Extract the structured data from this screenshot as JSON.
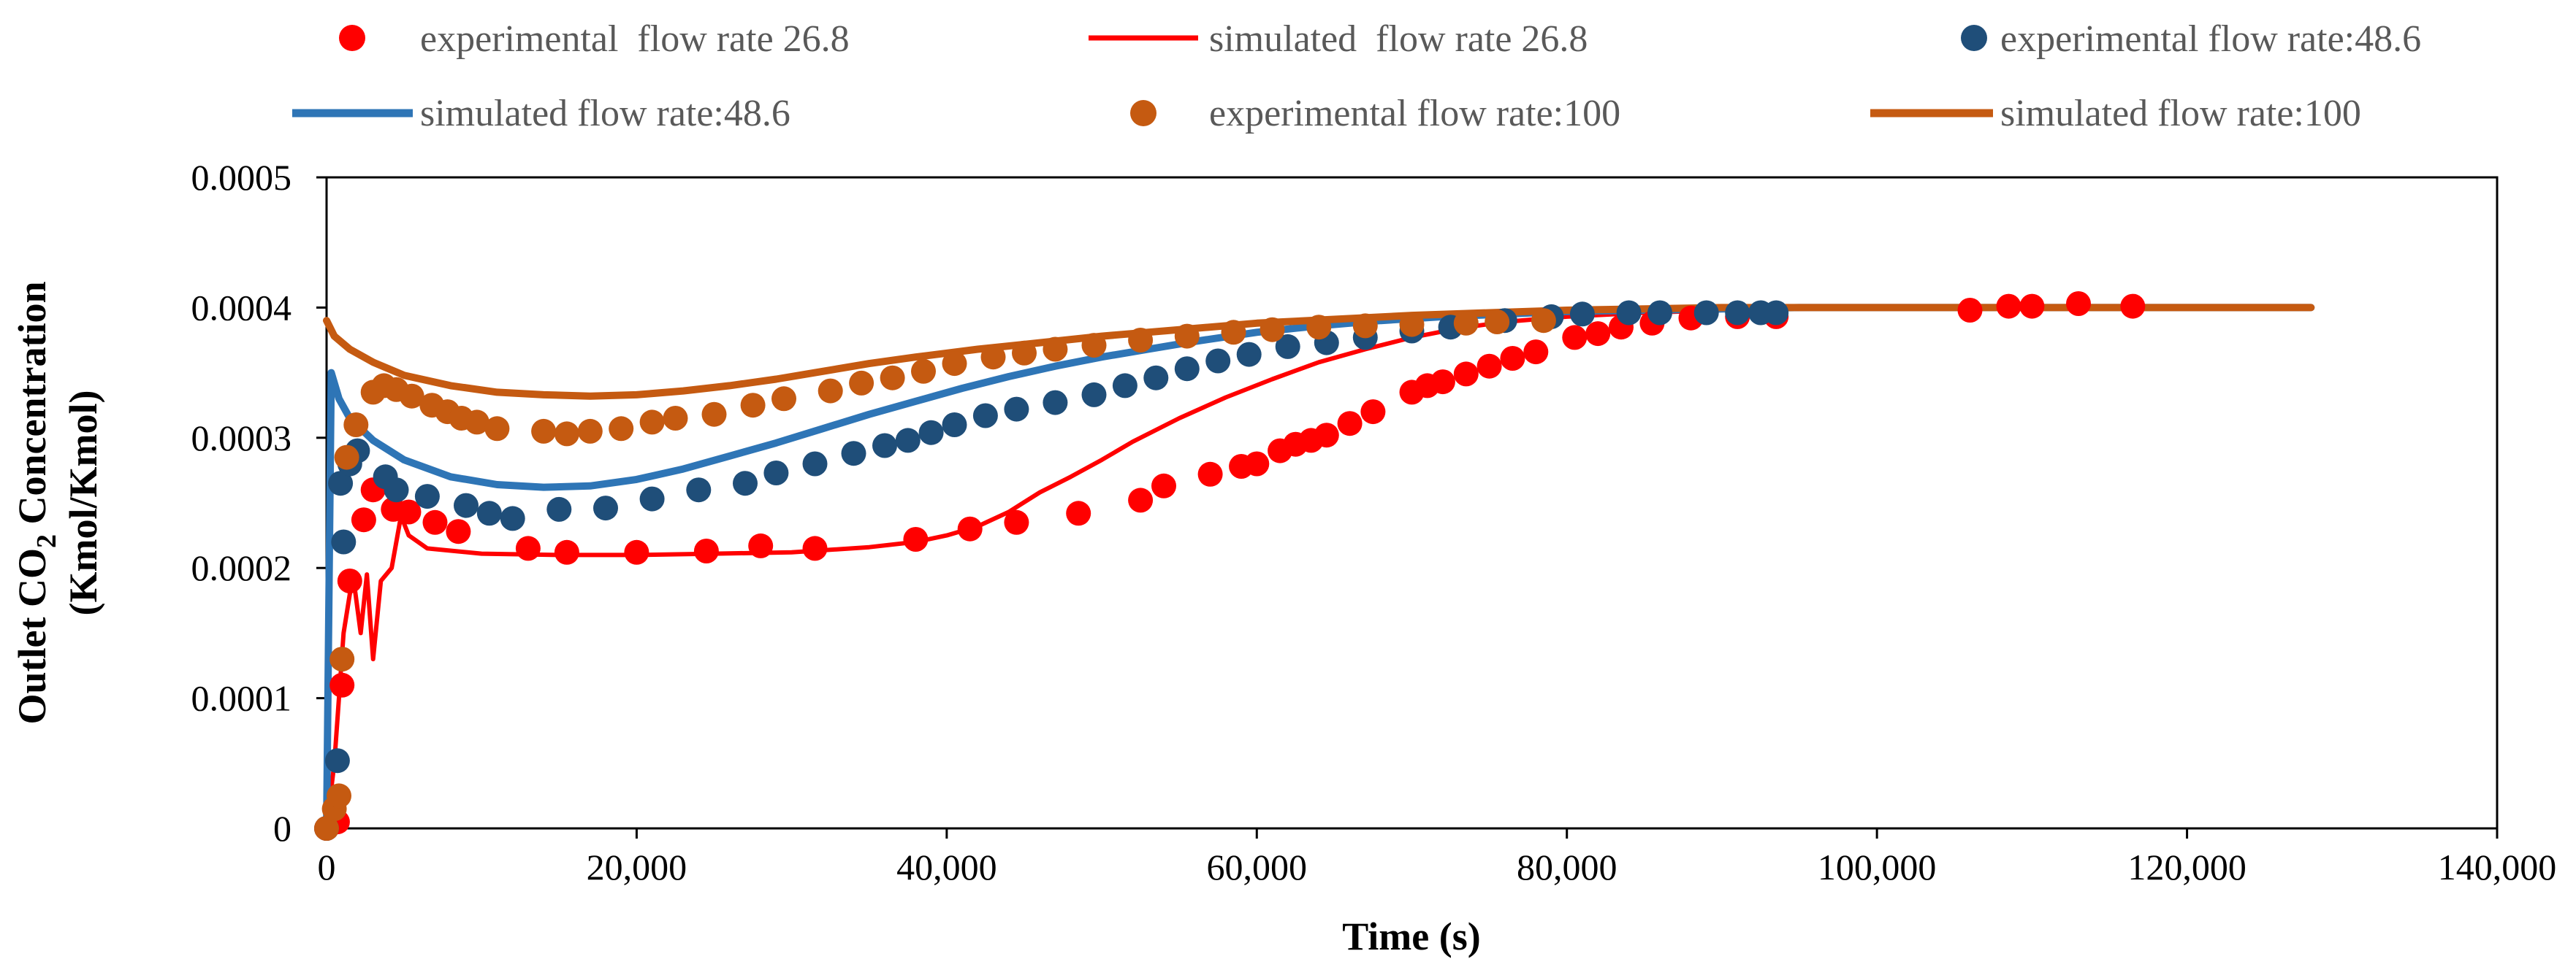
{
  "chart_data": {
    "type": "scatter",
    "title": "",
    "xlabel": "Time (s)",
    "ylabel_line1_prefix": "Outlet CO",
    "ylabel_line1_subscript": "2",
    "ylabel_line1_suffix": " Concentration",
    "ylabel_line2": "(Kmol/Kmol)",
    "xlim": [
      0,
      140000
    ],
    "ylim": [
      0,
      0.0005
    ],
    "x_ticks": [
      0,
      20000,
      40000,
      60000,
      80000,
      100000,
      120000,
      140000
    ],
    "x_tick_labels": [
      "0",
      "20,000",
      "40,000",
      "60,000",
      "80,000",
      "100,000",
      "120,000",
      "140,000"
    ],
    "y_ticks": [
      0,
      0.0001,
      0.0002,
      0.0003,
      0.0004,
      0.0005
    ],
    "y_tick_labels": [
      "0",
      "0.0001",
      "0.0002",
      "0.0003",
      "0.0004",
      "0.0005"
    ],
    "grid": false,
    "legend_position": "top",
    "series": [
      {
        "name": "experimental  flow rate 26.8",
        "kind": "marker",
        "color": "#ff0000",
        "points": [
          [
            0,
            0
          ],
          [
            700,
            5e-06
          ],
          [
            1000,
            0.00011
          ],
          [
            1500,
            0.00019
          ],
          [
            2400,
            0.000237
          ],
          [
            3000,
            0.00026
          ],
          [
            4300,
            0.000245
          ],
          [
            5300,
            0.000243
          ],
          [
            7000,
            0.000235
          ],
          [
            8500,
            0.000228
          ],
          [
            13000,
            0.000215
          ],
          [
            15500,
            0.000212
          ],
          [
            20000,
            0.000212
          ],
          [
            24500,
            0.000213
          ],
          [
            28000,
            0.000217
          ],
          [
            31500,
            0.000215
          ],
          [
            38000,
            0.000222
          ],
          [
            41500,
            0.00023
          ],
          [
            44500,
            0.000235
          ],
          [
            48500,
            0.000242
          ],
          [
            52500,
            0.000252
          ],
          [
            54000,
            0.000263
          ],
          [
            57000,
            0.000272
          ],
          [
            59000,
            0.000278
          ],
          [
            60000,
            0.00028
          ],
          [
            61500,
            0.00029
          ],
          [
            62500,
            0.000295
          ],
          [
            63500,
            0.000298
          ],
          [
            64500,
            0.000302
          ],
          [
            66000,
            0.000311
          ],
          [
            67500,
            0.00032
          ],
          [
            70000,
            0.000335
          ],
          [
            71000,
            0.00034
          ],
          [
            72000,
            0.000343
          ],
          [
            73500,
            0.000349
          ],
          [
            75000,
            0.000355
          ],
          [
            76500,
            0.000361
          ],
          [
            78000,
            0.000366
          ],
          [
            80500,
            0.000377
          ],
          [
            82000,
            0.00038
          ],
          [
            83500,
            0.000385
          ],
          [
            85500,
            0.000388
          ],
          [
            88000,
            0.000392
          ],
          [
            91000,
            0.000393
          ],
          [
            93500,
            0.000393
          ],
          [
            106000,
            0.000398
          ],
          [
            108500,
            0.000401
          ],
          [
            110000,
            0.000401
          ],
          [
            113000,
            0.000403
          ],
          [
            116500,
            0.000401
          ]
        ]
      },
      {
        "name": "simulated  flow rate 26.8",
        "kind": "line",
        "color": "#ff0000",
        "points": [
          [
            0,
            0
          ],
          [
            500,
            5e-05
          ],
          [
            1100,
            0.00015
          ],
          [
            1700,
            0.000195
          ],
          [
            2200,
            0.00015
          ],
          [
            2600,
            0.000195
          ],
          [
            3000,
            0.00013
          ],
          [
            3500,
            0.00019
          ],
          [
            4200,
            0.0002
          ],
          [
            4800,
            0.00024
          ],
          [
            5300,
            0.000225
          ],
          [
            6500,
            0.000215
          ],
          [
            10000,
            0.000211
          ],
          [
            15000,
            0.00021
          ],
          [
            20000,
            0.00021
          ],
          [
            25000,
            0.000211
          ],
          [
            30000,
            0.000212
          ],
          [
            35000,
            0.000216
          ],
          [
            38000,
            0.00022
          ],
          [
            40000,
            0.000225
          ],
          [
            42000,
            0.000232
          ],
          [
            44000,
            0.000243
          ],
          [
            46000,
            0.000258
          ],
          [
            48000,
            0.00027
          ],
          [
            50000,
            0.000283
          ],
          [
            52000,
            0.000297
          ],
          [
            55000,
            0.000315
          ],
          [
            58000,
            0.000331
          ],
          [
            61000,
            0.000345
          ],
          [
            64000,
            0.000358
          ],
          [
            67000,
            0.000368
          ],
          [
            70000,
            0.000377
          ],
          [
            73000,
            0.000384
          ],
          [
            76000,
            0.000389
          ],
          [
            80000,
            0.000393
          ],
          [
            85000,
            0.000396
          ],
          [
            90000,
            0.000398
          ],
          [
            95000,
            0.000399
          ],
          [
            100000,
            0.0004
          ],
          [
            110000,
            0.0004
          ],
          [
            128000,
            0.0004
          ]
        ]
      },
      {
        "name": "experimental flow rate:48.6",
        "kind": "marker",
        "color": "#1f4e79",
        "points": [
          [
            0,
            0
          ],
          [
            700,
            5.2e-05
          ],
          [
            900,
            0.000265
          ],
          [
            1100,
            0.00022
          ],
          [
            1500,
            0.00028
          ],
          [
            2000,
            0.00029
          ],
          [
            3800,
            0.00027
          ],
          [
            4500,
            0.00026
          ],
          [
            6500,
            0.000255
          ],
          [
            9000,
            0.000248
          ],
          [
            10500,
            0.000242
          ],
          [
            12000,
            0.000238
          ],
          [
            15000,
            0.000245
          ],
          [
            18000,
            0.000246
          ],
          [
            21000,
            0.000253
          ],
          [
            24000,
            0.00026
          ],
          [
            27000,
            0.000265
          ],
          [
            29000,
            0.000273
          ],
          [
            31500,
            0.00028
          ],
          [
            34000,
            0.000288
          ],
          [
            36000,
            0.000294
          ],
          [
            37500,
            0.000298
          ],
          [
            39000,
            0.000304
          ],
          [
            40500,
            0.00031
          ],
          [
            42500,
            0.000317
          ],
          [
            44500,
            0.000322
          ],
          [
            47000,
            0.000327
          ],
          [
            49500,
            0.000333
          ],
          [
            51500,
            0.00034
          ],
          [
            53500,
            0.000346
          ],
          [
            55500,
            0.000353
          ],
          [
            57500,
            0.000359
          ],
          [
            59500,
            0.000364
          ],
          [
            62000,
            0.00037
          ],
          [
            64500,
            0.000373
          ],
          [
            67000,
            0.000377
          ],
          [
            70000,
            0.000382
          ],
          [
            72500,
            0.000385
          ],
          [
            76000,
            0.00039
          ],
          [
            79000,
            0.000393
          ],
          [
            81000,
            0.000395
          ],
          [
            84000,
            0.000396
          ],
          [
            86000,
            0.000396
          ],
          [
            89000,
            0.000396
          ],
          [
            91000,
            0.000396
          ],
          [
            92500,
            0.000396
          ],
          [
            93500,
            0.000396
          ]
        ]
      },
      {
        "name": "simulated flow rate:48.6",
        "kind": "line",
        "color": "#2e75b6",
        "points": [
          [
            0,
            0
          ],
          [
            300,
            0.00035
          ],
          [
            800,
            0.00033
          ],
          [
            1500,
            0.000315
          ],
          [
            3000,
            0.000298
          ],
          [
            5000,
            0.000283
          ],
          [
            8000,
            0.00027
          ],
          [
            11000,
            0.000264
          ],
          [
            14000,
            0.000262
          ],
          [
            17000,
            0.000263
          ],
          [
            20000,
            0.000268
          ],
          [
            23000,
            0.000276
          ],
          [
            26000,
            0.000286
          ],
          [
            29000,
            0.000296
          ],
          [
            32000,
            0.000307
          ],
          [
            35000,
            0.000318
          ],
          [
            38000,
            0.000328
          ],
          [
            41000,
            0.000338
          ],
          [
            44000,
            0.000347
          ],
          [
            47000,
            0.000355
          ],
          [
            50000,
            0.000362
          ],
          [
            53000,
            0.000368
          ],
          [
            56000,
            0.000374
          ],
          [
            60000,
            0.000381
          ],
          [
            64000,
            0.000386
          ],
          [
            68000,
            0.00039
          ],
          [
            72000,
            0.000393
          ],
          [
            76000,
            0.000395
          ],
          [
            80000,
            0.000397
          ],
          [
            85000,
            0.000398
          ],
          [
            90000,
            0.000399
          ],
          [
            95000,
            0.0004
          ],
          [
            110000,
            0.0004
          ],
          [
            128000,
            0.0004
          ]
        ]
      },
      {
        "name": "experimental flow rate:100",
        "kind": "marker",
        "color": "#c55a11",
        "points": [
          [
            0,
            0
          ],
          [
            500,
            1.5e-05
          ],
          [
            800,
            2.5e-05
          ],
          [
            1000,
            0.00013
          ],
          [
            1300,
            0.000285
          ],
          [
            1900,
            0.00031
          ],
          [
            3000,
            0.000335
          ],
          [
            3700,
            0.00034
          ],
          [
            4500,
            0.000337
          ],
          [
            5500,
            0.000332
          ],
          [
            6800,
            0.000325
          ],
          [
            7800,
            0.00032
          ],
          [
            8700,
            0.000315
          ],
          [
            9700,
            0.000312
          ],
          [
            11000,
            0.000307
          ],
          [
            14000,
            0.000305
          ],
          [
            15500,
            0.000303
          ],
          [
            17000,
            0.000305
          ],
          [
            19000,
            0.000307
          ],
          [
            21000,
            0.000312
          ],
          [
            22500,
            0.000315
          ],
          [
            25000,
            0.000318
          ],
          [
            27500,
            0.000325
          ],
          [
            29500,
            0.00033
          ],
          [
            32500,
            0.000336
          ],
          [
            34500,
            0.000342
          ],
          [
            36500,
            0.000346
          ],
          [
            38500,
            0.000351
          ],
          [
            40500,
            0.000357
          ],
          [
            43000,
            0.000362
          ],
          [
            45000,
            0.000365
          ],
          [
            47000,
            0.000368
          ],
          [
            49500,
            0.000371
          ],
          [
            52500,
            0.000375
          ],
          [
            55500,
            0.000378
          ],
          [
            58500,
            0.000381
          ],
          [
            61000,
            0.000383
          ],
          [
            64000,
            0.000385
          ],
          [
            67000,
            0.000386
          ],
          [
            70000,
            0.000387
          ],
          [
            73500,
            0.000388
          ],
          [
            75500,
            0.000389
          ],
          [
            78500,
            0.00039
          ]
        ]
      },
      {
        "name": "simulated flow rate:100",
        "kind": "line",
        "color": "#c55a11",
        "points": [
          [
            0,
            0.00039
          ],
          [
            500,
            0.000378
          ],
          [
            1500,
            0.000368
          ],
          [
            3000,
            0.000358
          ],
          [
            5000,
            0.000348
          ],
          [
            8000,
            0.00034
          ],
          [
            11000,
            0.000335
          ],
          [
            14000,
            0.000333
          ],
          [
            17000,
            0.000332
          ],
          [
            20000,
            0.000333
          ],
          [
            23000,
            0.000336
          ],
          [
            26000,
            0.00034
          ],
          [
            29000,
            0.000345
          ],
          [
            32000,
            0.000351
          ],
          [
            35000,
            0.000357
          ],
          [
            38000,
            0.000362
          ],
          [
            42000,
            0.000368
          ],
          [
            46000,
            0.000373
          ],
          [
            50000,
            0.000378
          ],
          [
            55000,
            0.000383
          ],
          [
            60000,
            0.000388
          ],
          [
            65000,
            0.000391
          ],
          [
            70000,
            0.000394
          ],
          [
            75000,
            0.000396
          ],
          [
            80000,
            0.000398
          ],
          [
            85000,
            0.000399
          ],
          [
            90000,
            0.0004
          ],
          [
            100000,
            0.0004
          ],
          [
            128000,
            0.0004
          ]
        ]
      }
    ]
  }
}
